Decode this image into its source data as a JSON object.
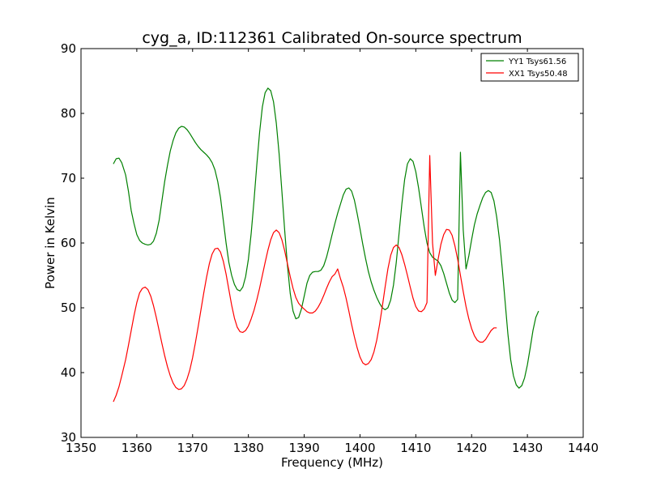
{
  "chart_data": {
    "type": "line",
    "title": "cyg_a, ID:112361 Calibrated On-source spectrum",
    "xlabel": "Frequency (MHz)",
    "ylabel": "Power in Kelvin",
    "xlim": [
      1350,
      1440
    ],
    "ylim": [
      30,
      90
    ],
    "xticks": [
      1350,
      1360,
      1370,
      1380,
      1390,
      1400,
      1410,
      1420,
      1430,
      1440
    ],
    "yticks": [
      30,
      40,
      50,
      60,
      70,
      80,
      90
    ],
    "grid": false,
    "legend_position": "top-right",
    "series": [
      {
        "name": "YY1 Tsys61.56",
        "color": "#008000",
        "points": [
          [
            1355.8,
            72.2
          ],
          [
            1356.3,
            73.0
          ],
          [
            1356.8,
            73.1
          ],
          [
            1357.3,
            72.4
          ],
          [
            1358.0,
            70.5
          ],
          [
            1358.5,
            68.0
          ],
          [
            1359.0,
            65.0
          ],
          [
            1359.5,
            63.0
          ],
          [
            1360.0,
            61.3
          ],
          [
            1360.5,
            60.4
          ],
          [
            1361.0,
            60.0
          ],
          [
            1361.5,
            59.8
          ],
          [
            1362.0,
            59.7
          ],
          [
            1362.5,
            59.8
          ],
          [
            1363.0,
            60.3
          ],
          [
            1363.5,
            61.5
          ],
          [
            1364.0,
            63.5
          ],
          [
            1364.5,
            66.5
          ],
          [
            1365.0,
            69.5
          ],
          [
            1365.5,
            72.0
          ],
          [
            1366.0,
            74.2
          ],
          [
            1366.5,
            75.8
          ],
          [
            1367.0,
            77.0
          ],
          [
            1367.5,
            77.7
          ],
          [
            1368.0,
            78.0
          ],
          [
            1368.5,
            77.9
          ],
          [
            1369.0,
            77.5
          ],
          [
            1369.5,
            76.9
          ],
          [
            1370.0,
            76.2
          ],
          [
            1370.5,
            75.5
          ],
          [
            1371.0,
            74.9
          ],
          [
            1371.5,
            74.4
          ],
          [
            1372.0,
            74.0
          ],
          [
            1372.5,
            73.6
          ],
          [
            1373.0,
            73.1
          ],
          [
            1373.5,
            72.4
          ],
          [
            1374.0,
            71.3
          ],
          [
            1374.5,
            69.5
          ],
          [
            1375.0,
            67.0
          ],
          [
            1375.5,
            63.5
          ],
          [
            1376.0,
            60.0
          ],
          [
            1376.5,
            57.0
          ],
          [
            1377.0,
            55.0
          ],
          [
            1377.5,
            53.6
          ],
          [
            1378.0,
            52.8
          ],
          [
            1378.5,
            52.6
          ],
          [
            1379.0,
            53.2
          ],
          [
            1379.5,
            54.8
          ],
          [
            1380.0,
            57.5
          ],
          [
            1380.5,
            61.5
          ],
          [
            1381.0,
            66.5
          ],
          [
            1381.5,
            72.0
          ],
          [
            1382.0,
            77.0
          ],
          [
            1382.5,
            81.0
          ],
          [
            1383.0,
            83.2
          ],
          [
            1383.5,
            83.9
          ],
          [
            1384.0,
            83.5
          ],
          [
            1384.5,
            81.8
          ],
          [
            1385.0,
            78.5
          ],
          [
            1385.5,
            73.8
          ],
          [
            1386.0,
            68.0
          ],
          [
            1386.5,
            62.0
          ],
          [
            1387.0,
            56.5
          ],
          [
            1387.5,
            52.2
          ],
          [
            1388.0,
            49.5
          ],
          [
            1388.5,
            48.3
          ],
          [
            1389.0,
            48.5
          ],
          [
            1389.5,
            49.8
          ],
          [
            1390.0,
            51.8
          ],
          [
            1390.5,
            53.8
          ],
          [
            1391.0,
            55.0
          ],
          [
            1391.5,
            55.5
          ],
          [
            1392.0,
            55.6
          ],
          [
            1392.5,
            55.6
          ],
          [
            1393.0,
            55.8
          ],
          [
            1393.5,
            56.5
          ],
          [
            1394.0,
            57.8
          ],
          [
            1394.5,
            59.5
          ],
          [
            1395.0,
            61.3
          ],
          [
            1395.5,
            63.0
          ],
          [
            1396.0,
            64.6
          ],
          [
            1396.5,
            66.0
          ],
          [
            1397.0,
            67.4
          ],
          [
            1397.5,
            68.3
          ],
          [
            1398.0,
            68.5
          ],
          [
            1398.5,
            68.0
          ],
          [
            1399.0,
            66.6
          ],
          [
            1399.5,
            64.5
          ],
          [
            1400.0,
            62.2
          ],
          [
            1400.5,
            59.8
          ],
          [
            1401.0,
            57.6
          ],
          [
            1401.5,
            55.6
          ],
          [
            1402.0,
            54.0
          ],
          [
            1402.5,
            52.7
          ],
          [
            1403.0,
            51.6
          ],
          [
            1403.5,
            50.7
          ],
          [
            1404.0,
            50.0
          ],
          [
            1404.5,
            49.7
          ],
          [
            1405.0,
            50.0
          ],
          [
            1405.5,
            51.2
          ],
          [
            1406.0,
            53.5
          ],
          [
            1406.5,
            57.0
          ],
          [
            1407.0,
            61.5
          ],
          [
            1407.5,
            66.0
          ],
          [
            1408.0,
            69.8
          ],
          [
            1408.5,
            72.2
          ],
          [
            1409.0,
            73.0
          ],
          [
            1409.5,
            72.6
          ],
          [
            1410.0,
            71.0
          ],
          [
            1410.5,
            68.5
          ],
          [
            1411.0,
            65.5
          ],
          [
            1411.5,
            62.5
          ],
          [
            1412.0,
            60.0
          ],
          [
            1412.5,
            58.5
          ],
          [
            1413.0,
            57.8
          ],
          [
            1413.5,
            57.5
          ],
          [
            1414.0,
            57.2
          ],
          [
            1414.5,
            56.5
          ],
          [
            1415.0,
            55.3
          ],
          [
            1415.5,
            53.8
          ],
          [
            1416.0,
            52.3
          ],
          [
            1416.5,
            51.2
          ],
          [
            1417.0,
            50.8
          ],
          [
            1417.5,
            51.3
          ],
          [
            1418.0,
            74.0
          ],
          [
            1418.5,
            62.0
          ],
          [
            1419.0,
            56.0
          ],
          [
            1419.5,
            58.0
          ],
          [
            1420.0,
            60.5
          ],
          [
            1420.5,
            62.8
          ],
          [
            1421.0,
            64.5
          ],
          [
            1421.5,
            65.8
          ],
          [
            1422.0,
            67.0
          ],
          [
            1422.5,
            67.8
          ],
          [
            1423.0,
            68.1
          ],
          [
            1423.5,
            67.8
          ],
          [
            1424.0,
            66.5
          ],
          [
            1424.5,
            64.0
          ],
          [
            1425.0,
            60.5
          ],
          [
            1425.5,
            56.0
          ],
          [
            1426.0,
            51.0
          ],
          [
            1426.5,
            46.0
          ],
          [
            1427.0,
            42.0
          ],
          [
            1427.5,
            39.5
          ],
          [
            1428.0,
            38.1
          ],
          [
            1428.5,
            37.6
          ],
          [
            1429.0,
            38.0
          ],
          [
            1429.5,
            39.2
          ],
          [
            1430.0,
            41.2
          ],
          [
            1430.5,
            43.8
          ],
          [
            1431.0,
            46.5
          ],
          [
            1431.5,
            48.5
          ],
          [
            1432.0,
            49.5
          ]
        ]
      },
      {
        "name": "XX1 Tsys50.48",
        "color": "#ff0000",
        "points": [
          [
            1355.8,
            35.5
          ],
          [
            1356.3,
            36.5
          ],
          [
            1356.8,
            37.8
          ],
          [
            1357.3,
            39.5
          ],
          [
            1358.0,
            42.0
          ],
          [
            1358.5,
            44.2
          ],
          [
            1359.0,
            46.5
          ],
          [
            1359.5,
            48.8
          ],
          [
            1360.0,
            50.8
          ],
          [
            1360.5,
            52.3
          ],
          [
            1361.0,
            53.0
          ],
          [
            1361.5,
            53.2
          ],
          [
            1362.0,
            52.8
          ],
          [
            1362.5,
            51.8
          ],
          [
            1363.0,
            50.3
          ],
          [
            1363.5,
            48.5
          ],
          [
            1364.0,
            46.5
          ],
          [
            1364.5,
            44.5
          ],
          [
            1365.0,
            42.6
          ],
          [
            1365.5,
            40.9
          ],
          [
            1366.0,
            39.5
          ],
          [
            1366.5,
            38.4
          ],
          [
            1367.0,
            37.7
          ],
          [
            1367.5,
            37.4
          ],
          [
            1368.0,
            37.5
          ],
          [
            1368.5,
            38.0
          ],
          [
            1369.0,
            39.0
          ],
          [
            1369.5,
            40.4
          ],
          [
            1370.0,
            42.3
          ],
          [
            1370.5,
            44.6
          ],
          [
            1371.0,
            47.1
          ],
          [
            1371.5,
            49.7
          ],
          [
            1372.0,
            52.3
          ],
          [
            1372.5,
            54.7
          ],
          [
            1373.0,
            56.8
          ],
          [
            1373.5,
            58.3
          ],
          [
            1374.0,
            59.1
          ],
          [
            1374.5,
            59.2
          ],
          [
            1375.0,
            58.6
          ],
          [
            1375.5,
            57.2
          ],
          [
            1376.0,
            55.2
          ],
          [
            1376.5,
            52.8
          ],
          [
            1377.0,
            50.4
          ],
          [
            1377.5,
            48.4
          ],
          [
            1378.0,
            47.0
          ],
          [
            1378.5,
            46.3
          ],
          [
            1379.0,
            46.2
          ],
          [
            1379.5,
            46.5
          ],
          [
            1380.0,
            47.2
          ],
          [
            1380.5,
            48.3
          ],
          [
            1381.0,
            49.6
          ],
          [
            1381.5,
            51.2
          ],
          [
            1382.0,
            53.0
          ],
          [
            1382.5,
            55.0
          ],
          [
            1383.0,
            57.0
          ],
          [
            1383.5,
            58.9
          ],
          [
            1384.0,
            60.5
          ],
          [
            1384.5,
            61.6
          ],
          [
            1385.0,
            62.0
          ],
          [
            1385.5,
            61.6
          ],
          [
            1386.0,
            60.5
          ],
          [
            1386.5,
            58.8
          ],
          [
            1387.0,
            56.8
          ],
          [
            1387.5,
            54.8
          ],
          [
            1388.0,
            53.0
          ],
          [
            1388.5,
            51.6
          ],
          [
            1389.0,
            50.7
          ],
          [
            1389.5,
            50.2
          ],
          [
            1390.0,
            49.8
          ],
          [
            1390.5,
            49.4
          ],
          [
            1391.0,
            49.2
          ],
          [
            1391.5,
            49.2
          ],
          [
            1392.0,
            49.5
          ],
          [
            1392.5,
            50.1
          ],
          [
            1393.0,
            50.9
          ],
          [
            1393.5,
            51.9
          ],
          [
            1394.0,
            53.0
          ],
          [
            1394.5,
            54.0
          ],
          [
            1395.0,
            54.8
          ],
          [
            1395.5,
            55.2
          ],
          [
            1396.0,
            56.0
          ],
          [
            1396.5,
            54.5
          ],
          [
            1397.0,
            53.2
          ],
          [
            1397.5,
            51.5
          ],
          [
            1398.0,
            49.5
          ],
          [
            1398.5,
            47.4
          ],
          [
            1399.0,
            45.5
          ],
          [
            1399.5,
            43.8
          ],
          [
            1400.0,
            42.4
          ],
          [
            1400.5,
            41.5
          ],
          [
            1401.0,
            41.2
          ],
          [
            1401.5,
            41.4
          ],
          [
            1402.0,
            42.0
          ],
          [
            1402.5,
            43.2
          ],
          [
            1403.0,
            45.0
          ],
          [
            1403.5,
            47.4
          ],
          [
            1404.0,
            50.2
          ],
          [
            1404.5,
            53.2
          ],
          [
            1405.0,
            56.0
          ],
          [
            1405.5,
            58.1
          ],
          [
            1406.0,
            59.3
          ],
          [
            1406.5,
            59.7
          ],
          [
            1407.0,
            59.3
          ],
          [
            1407.5,
            58.2
          ],
          [
            1408.0,
            56.7
          ],
          [
            1408.5,
            55.0
          ],
          [
            1409.0,
            53.2
          ],
          [
            1409.5,
            51.5
          ],
          [
            1410.0,
            50.2
          ],
          [
            1410.5,
            49.5
          ],
          [
            1411.0,
            49.4
          ],
          [
            1411.5,
            49.8
          ],
          [
            1412.0,
            50.8
          ],
          [
            1412.5,
            73.5
          ],
          [
            1413.0,
            60.0
          ],
          [
            1413.5,
            55.0
          ],
          [
            1414.0,
            57.5
          ],
          [
            1414.5,
            59.8
          ],
          [
            1415.0,
            61.3
          ],
          [
            1415.5,
            62.1
          ],
          [
            1416.0,
            62.0
          ],
          [
            1416.5,
            61.2
          ],
          [
            1417.0,
            59.6
          ],
          [
            1417.5,
            57.5
          ],
          [
            1418.0,
            55.0
          ],
          [
            1418.5,
            52.5
          ],
          [
            1419.0,
            50.2
          ],
          [
            1419.5,
            48.3
          ],
          [
            1420.0,
            46.8
          ],
          [
            1420.5,
            45.7
          ],
          [
            1421.0,
            45.0
          ],
          [
            1421.5,
            44.7
          ],
          [
            1422.0,
            44.7
          ],
          [
            1422.5,
            45.1
          ],
          [
            1423.0,
            45.8
          ],
          [
            1423.5,
            46.5
          ],
          [
            1424.0,
            46.9
          ],
          [
            1424.5,
            46.9
          ]
        ]
      }
    ]
  }
}
